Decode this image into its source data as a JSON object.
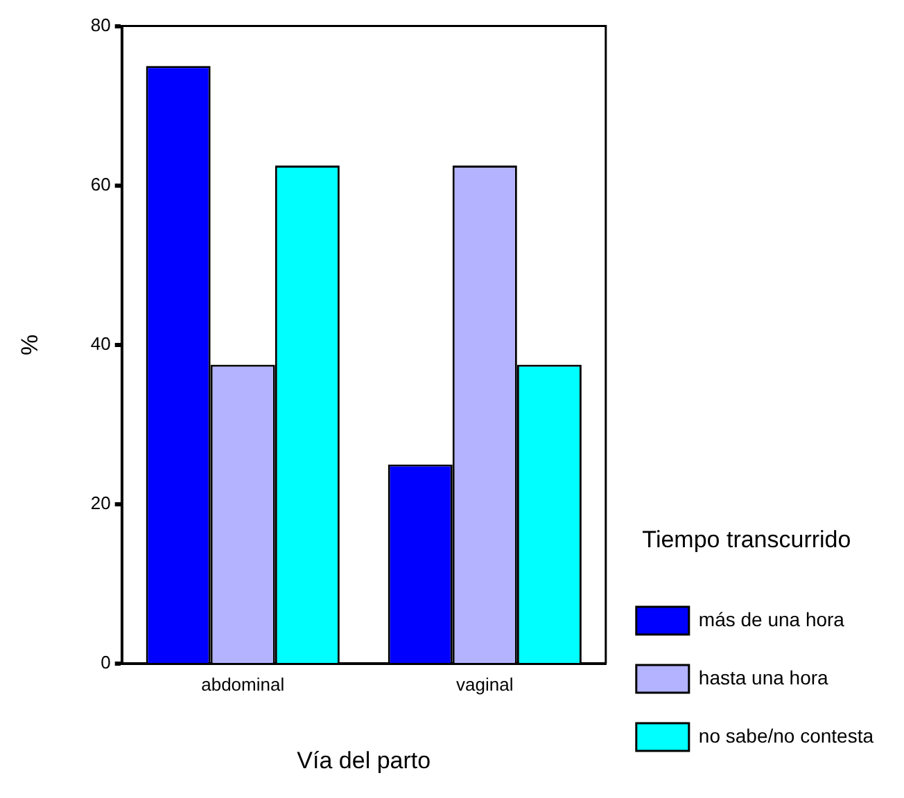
{
  "chart_data": {
    "type": "bar",
    "xlabel": "Vía del parto",
    "ylabel": "%",
    "legend_title": "Tiempo transcurrido",
    "categories": [
      "abdominal",
      "vaginal"
    ],
    "series": [
      {
        "name": "más de una hora",
        "color": "#0000ff",
        "values": [
          75,
          25
        ]
      },
      {
        "name": "hasta una hora",
        "color": "#b3b3ff",
        "values": [
          37.5,
          62.5
        ]
      },
      {
        "name": "no sabe/no contesta",
        "color": "#00ffff",
        "values": [
          62.5,
          37.5
        ]
      }
    ],
    "ylim": [
      0,
      80
    ],
    "yticks": [
      0,
      20,
      40,
      60,
      80
    ],
    "grid": false,
    "legend": "right"
  }
}
